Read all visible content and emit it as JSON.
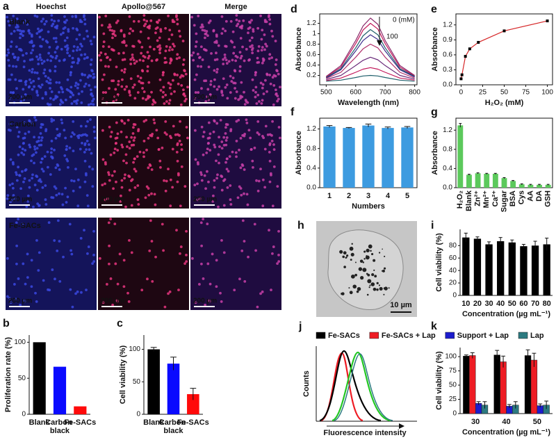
{
  "figure": {
    "a": {
      "label": "a",
      "columns": [
        "Hoechst",
        "Apollo@567",
        "Merge"
      ],
      "rows": [
        "Blank",
        "Carbon",
        "Fe-SACs"
      ],
      "scale_bar": "200 µm"
    },
    "h": {
      "label": "h",
      "scale_bar": "10 µm"
    },
    "j": {
      "label": "j",
      "ylabel": "Counts",
      "xlabel": "Fluorescence intensity"
    }
  },
  "chart_data": [
    {
      "type": "bar",
      "panel": "b",
      "ylabel": "Proliferation rate (%)",
      "categories": [
        "Blank",
        "Carbon black",
        "Fe-SACs"
      ],
      "values": [
        100,
        66,
        11
      ],
      "colors": [
        "#000000",
        "#0a0aff",
        "#ff0a0a"
      ],
      "ylim": [
        0,
        110
      ],
      "yticks": [
        0,
        50,
        100
      ]
    },
    {
      "type": "bar",
      "panel": "c",
      "ylabel": "Cell viability (%)",
      "categories": [
        "Blank",
        "Carbon black",
        "Fe-SACs"
      ],
      "values": [
        100,
        78,
        31
      ],
      "errors": [
        3,
        10,
        9
      ],
      "colors": [
        "#000000",
        "#0a0aff",
        "#ff0a0a"
      ],
      "ylim": [
        0,
        122
      ],
      "yticks": [
        0,
        50,
        100
      ]
    },
    {
      "type": "line",
      "panel": "d",
      "xlabel": "Wavelength (nm)",
      "ylabel": "Absorbance",
      "annotations": [
        "0 (mM)",
        "100"
      ],
      "x": [
        500,
        550,
        600,
        625,
        650,
        675,
        700,
        750,
        800
      ],
      "xlim": [
        478,
        808
      ],
      "xticks": [
        500,
        600,
        700,
        800
      ],
      "ylim": [
        0.02,
        1.38
      ],
      "yticks": [
        0.2,
        0.4,
        0.6,
        0.8,
        1.0,
        1.2
      ],
      "series": [
        {
          "color": "#8b2a6b",
          "values": [
            0.18,
            0.39,
            0.87,
            1.15,
            1.3,
            1.18,
            0.87,
            0.39,
            0.2
          ]
        },
        {
          "color": "#c2185b",
          "values": [
            0.17,
            0.36,
            0.81,
            1.07,
            1.2,
            1.09,
            0.81,
            0.36,
            0.19
          ]
        },
        {
          "color": "#1f5f6b",
          "values": [
            0.16,
            0.33,
            0.73,
            0.96,
            1.08,
            0.98,
            0.73,
            0.33,
            0.18
          ]
        },
        {
          "color": "#3a2a8a",
          "values": [
            0.15,
            0.31,
            0.67,
            0.87,
            0.98,
            0.89,
            0.67,
            0.31,
            0.17
          ]
        },
        {
          "color": "#b0306a",
          "values": [
            0.14,
            0.26,
            0.55,
            0.71,
            0.8,
            0.73,
            0.55,
            0.26,
            0.15
          ]
        },
        {
          "color": "#6a2a7a",
          "values": [
            0.12,
            0.2,
            0.39,
            0.49,
            0.55,
            0.5,
            0.39,
            0.2,
            0.13
          ]
        },
        {
          "color": "#c2185b",
          "values": [
            0.1,
            0.15,
            0.26,
            0.32,
            0.35,
            0.32,
            0.26,
            0.15,
            0.11
          ]
        },
        {
          "color": "#1f5f6b",
          "values": [
            0.09,
            0.11,
            0.16,
            0.19,
            0.2,
            0.19,
            0.16,
            0.11,
            0.09
          ]
        }
      ]
    },
    {
      "type": "scatter",
      "panel": "e",
      "xlabel": "H₂O₂ (mM)",
      "ylabel": "Absorbance",
      "x": [
        0,
        1,
        5,
        10,
        20,
        50,
        100
      ],
      "values": [
        0.12,
        0.2,
        0.57,
        0.72,
        0.85,
        1.08,
        1.28
      ],
      "color": "#000000",
      "fit_color": "#d62728",
      "xlim": [
        -6,
        106
      ],
      "xticks": [
        0,
        25,
        50,
        75,
        100
      ],
      "ylim": [
        0,
        1.42
      ],
      "yticks": [
        {
          "value": 0,
          "label": "0.0"
        },
        0.3,
        0.6,
        0.9,
        1.2
      ]
    },
    {
      "type": "bar",
      "panel": "f",
      "xlabel": "Numbers",
      "ylabel": "Absorbance",
      "categories": [
        "1",
        "2",
        "3",
        "4",
        "5"
      ],
      "values": [
        1.25,
        1.22,
        1.27,
        1.22,
        1.23
      ],
      "errors": [
        0.02,
        0.01,
        0.03,
        0.02,
        0.02
      ],
      "color": "#3d9be0",
      "ylim": [
        0,
        1.42
      ],
      "yticks": [
        {
          "value": 0,
          "label": "0.0"
        },
        0.4,
        0.8,
        1.2
      ]
    },
    {
      "type": "bar",
      "panel": "g",
      "ylabel": "Absorbance",
      "categories": [
        "H₂O₂",
        "Blank",
        "Zn²⁺",
        "Mn²⁺",
        "Ca²⁺",
        "Sugar",
        "BSA",
        "Cys",
        "AA",
        "DA",
        "GSH"
      ],
      "values": [
        1.3,
        0.27,
        0.3,
        0.29,
        0.29,
        0.2,
        0.14,
        0.07,
        0.06,
        0.06,
        0.06
      ],
      "errors": [
        0.04,
        0.01,
        0.01,
        0.01,
        0.01,
        0.01,
        0.01,
        0.01,
        0.01,
        0.01,
        0.01
      ],
      "color": "#5cc95c",
      "ylim": [
        0,
        1.45
      ],
      "yticks": [
        {
          "value": 0,
          "label": "0.0"
        },
        0.4,
        0.8,
        1.2
      ]
    },
    {
      "type": "bar",
      "panel": "i",
      "xlabel": "Concentration (µg mL⁻¹)",
      "ylabel": "Cell viability (%)",
      "categories": [
        "10",
        "20",
        "30",
        "40",
        "50",
        "60",
        "70",
        "80"
      ],
      "values": [
        93,
        91,
        82,
        87,
        85,
        79,
        80,
        82
      ],
      "errors": [
        7,
        3,
        4,
        6,
        4,
        3,
        7,
        10
      ],
      "color": "#000000",
      "ylim": [
        0,
        106
      ],
      "yticks": [
        0,
        20,
        40,
        60,
        80
      ]
    },
    {
      "type": "grouped_bar",
      "panel": "k",
      "xlabel": "Concentration (µg mL⁻¹)",
      "ylabel": "Cell viability (%)",
      "categories": [
        "30",
        "40",
        "50"
      ],
      "ylim": [
        0,
        116
      ],
      "yticks": [
        0,
        25,
        50,
        75,
        100
      ],
      "series": [
        {
          "name": "Fe-SACs",
          "color": "#000000",
          "values": [
            101,
            103,
            102
          ],
          "errors": [
            2,
            8,
            10
          ]
        },
        {
          "name": "Fe-SACs + Lap",
          "color": "#ee1c24",
          "values": [
            102,
            91,
            94
          ],
          "errors": [
            5,
            10,
            12
          ]
        },
        {
          "name": "Support + Lap",
          "color": "#1c1ccc",
          "values": [
            18,
            13,
            14
          ],
          "errors": [
            3,
            3,
            3
          ]
        },
        {
          "name": "Lap",
          "color": "#2c7a80",
          "values": [
            15,
            15,
            15
          ],
          "errors": [
            6,
            6,
            7
          ]
        }
      ]
    }
  ]
}
